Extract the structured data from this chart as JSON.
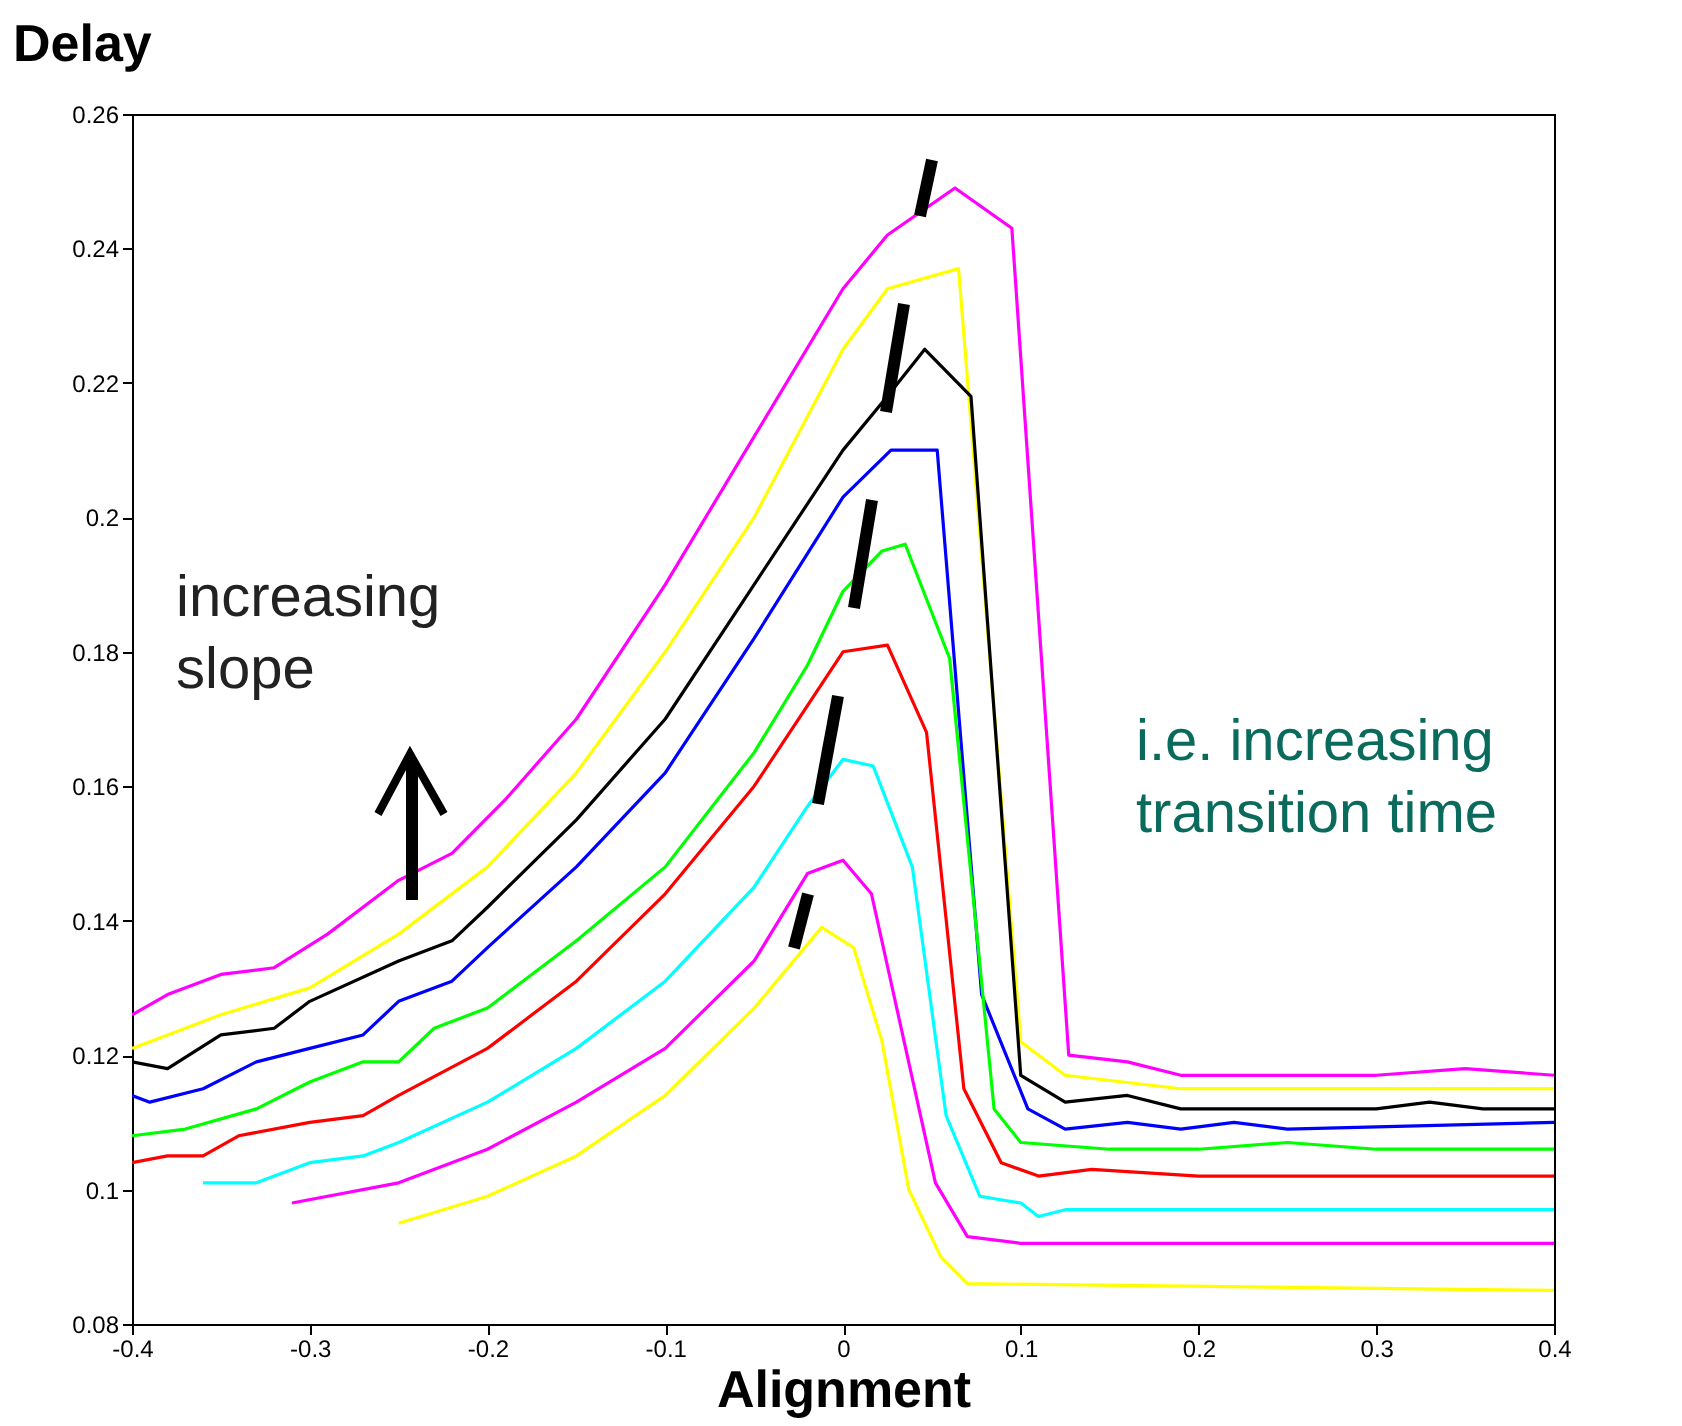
{
  "chart_data": {
    "type": "line",
    "xlabel": "Alignment",
    "ylabel": "Delay",
    "xlim": [
      -0.4,
      0.4
    ],
    "xticks": [
      -0.4,
      -0.3,
      -0.2,
      -0.1,
      0,
      0.1,
      0.2,
      0.3,
      0.4
    ],
    "ylim": [
      0.08,
      0.26
    ],
    "yticks": [
      0.08,
      0.1,
      0.12,
      0.14,
      0.16,
      0.18,
      0.2,
      0.22,
      0.24,
      0.26
    ],
    "grid": false,
    "legend": false,
    "marker": "none",
    "line_style": "solid",
    "annotations": [
      "increasing\nslope",
      "i.e. increasing\ntransition time"
    ],
    "series": [
      {
        "color": "#ff00ff",
        "x": [
          -0.4,
          -0.38,
          -0.35,
          -0.32,
          -0.29,
          -0.25,
          -0.22,
          -0.19,
          -0.15,
          -0.1,
          -0.05,
          0,
          0.025,
          0.063,
          0.095,
          0.127,
          0.16,
          0.19,
          0.25,
          0.3,
          0.35,
          0.4
        ],
        "values": [
          0.126,
          0.129,
          0.132,
          0.133,
          0.138,
          0.146,
          0.15,
          0.158,
          0.17,
          0.19,
          0.212,
          0.234,
          0.242,
          0.249,
          0.243,
          0.12,
          0.119,
          0.117,
          0.117,
          0.117,
          0.118,
          0.117
        ]
      },
      {
        "color": "#ffff00",
        "x": [
          -0.4,
          -0.38,
          -0.35,
          -0.3,
          -0.25,
          -0.2,
          -0.15,
          -0.1,
          -0.05,
          0,
          0.025,
          0.065,
          0.1,
          0.125,
          0.19,
          0.25,
          0.3,
          0.4
        ],
        "values": [
          0.121,
          0.123,
          0.126,
          0.13,
          0.138,
          0.148,
          0.162,
          0.18,
          0.2,
          0.225,
          0.234,
          0.237,
          0.122,
          0.117,
          0.115,
          0.115,
          0.115,
          0.115
        ]
      },
      {
        "color": "#000000",
        "x": [
          -0.4,
          -0.38,
          -0.35,
          -0.32,
          -0.3,
          -0.25,
          -0.22,
          -0.2,
          -0.15,
          -0.1,
          -0.05,
          0,
          0.025,
          0.046,
          0.072,
          0.1,
          0.125,
          0.16,
          0.19,
          0.3,
          0.33,
          0.36,
          0.4
        ],
        "values": [
          0.119,
          0.118,
          0.123,
          0.124,
          0.128,
          0.134,
          0.137,
          0.142,
          0.155,
          0.17,
          0.19,
          0.21,
          0.218,
          0.225,
          0.218,
          0.117,
          0.113,
          0.114,
          0.112,
          0.112,
          0.113,
          0.112,
          0.112
        ]
      },
      {
        "color": "#0000ff",
        "x": [
          -0.4,
          -0.39,
          -0.36,
          -0.33,
          -0.3,
          -0.27,
          -0.25,
          -0.22,
          -0.2,
          -0.15,
          -0.1,
          -0.05,
          0,
          0.027,
          0.053,
          0.078,
          0.104,
          0.125,
          0.16,
          0.19,
          0.22,
          0.25,
          0.4
        ],
        "values": [
          0.114,
          0.113,
          0.115,
          0.119,
          0.121,
          0.123,
          0.128,
          0.131,
          0.136,
          0.148,
          0.162,
          0.182,
          0.203,
          0.21,
          0.21,
          0.129,
          0.112,
          0.109,
          0.11,
          0.109,
          0.11,
          0.109,
          0.11
        ]
      },
      {
        "color": "#00ff00",
        "x": [
          -0.4,
          -0.37,
          -0.33,
          -0.3,
          -0.27,
          -0.25,
          -0.23,
          -0.2,
          -0.15,
          -0.1,
          -0.05,
          -0.02,
          0,
          0.022,
          0.035,
          0.06,
          0.085,
          0.1,
          0.15,
          0.2,
          0.25,
          0.3,
          0.4
        ],
        "values": [
          0.108,
          0.109,
          0.112,
          0.116,
          0.119,
          0.119,
          0.124,
          0.127,
          0.137,
          0.148,
          0.165,
          0.178,
          0.189,
          0.195,
          0.196,
          0.179,
          0.112,
          0.107,
          0.106,
          0.106,
          0.107,
          0.106,
          0.106
        ]
      },
      {
        "color": "#ff0000",
        "x": [
          -0.4,
          -0.38,
          -0.36,
          -0.34,
          -0.3,
          -0.27,
          -0.25,
          -0.2,
          -0.15,
          -0.1,
          -0.05,
          -0.02,
          0,
          0.025,
          0.047,
          0.068,
          0.089,
          0.11,
          0.14,
          0.2,
          0.4
        ],
        "values": [
          0.104,
          0.105,
          0.105,
          0.108,
          0.11,
          0.111,
          0.114,
          0.121,
          0.131,
          0.144,
          0.16,
          0.172,
          0.18,
          0.181,
          0.168,
          0.115,
          0.104,
          0.102,
          0.103,
          0.102,
          0.102
        ]
      },
      {
        "color": "#00ffff",
        "x": [
          -0.36,
          -0.33,
          -0.3,
          -0.27,
          -0.25,
          -0.2,
          -0.15,
          -0.1,
          -0.05,
          -0.02,
          0,
          0.017,
          0.039,
          0.058,
          0.077,
          0.1,
          0.11,
          0.125,
          0.4
        ],
        "values": [
          0.101,
          0.101,
          0.104,
          0.105,
          0.107,
          0.113,
          0.121,
          0.131,
          0.145,
          0.157,
          0.164,
          0.163,
          0.148,
          0.111,
          0.099,
          0.098,
          0.096,
          0.097,
          0.097
        ]
      },
      {
        "color": "#ff00ff",
        "x": [
          -0.31,
          -0.25,
          -0.2,
          -0.15,
          -0.1,
          -0.05,
          -0.02,
          0,
          0.016,
          0.052,
          0.07,
          0.1,
          0.4
        ],
        "values": [
          0.098,
          0.101,
          0.106,
          0.113,
          0.121,
          0.134,
          0.147,
          0.149,
          0.144,
          0.101,
          0.093,
          0.092,
          0.092
        ]
      },
      {
        "color": "#ffff00",
        "x": [
          -0.25,
          -0.2,
          -0.15,
          -0.1,
          -0.05,
          -0.012,
          0.006,
          0.022,
          0.037,
          0.055,
          0.07,
          0.4
        ],
        "values": [
          0.095,
          0.099,
          0.105,
          0.114,
          0.127,
          0.139,
          0.136,
          0.122,
          0.1,
          0.09,
          0.086,
          0.085
        ]
      }
    ]
  }
}
